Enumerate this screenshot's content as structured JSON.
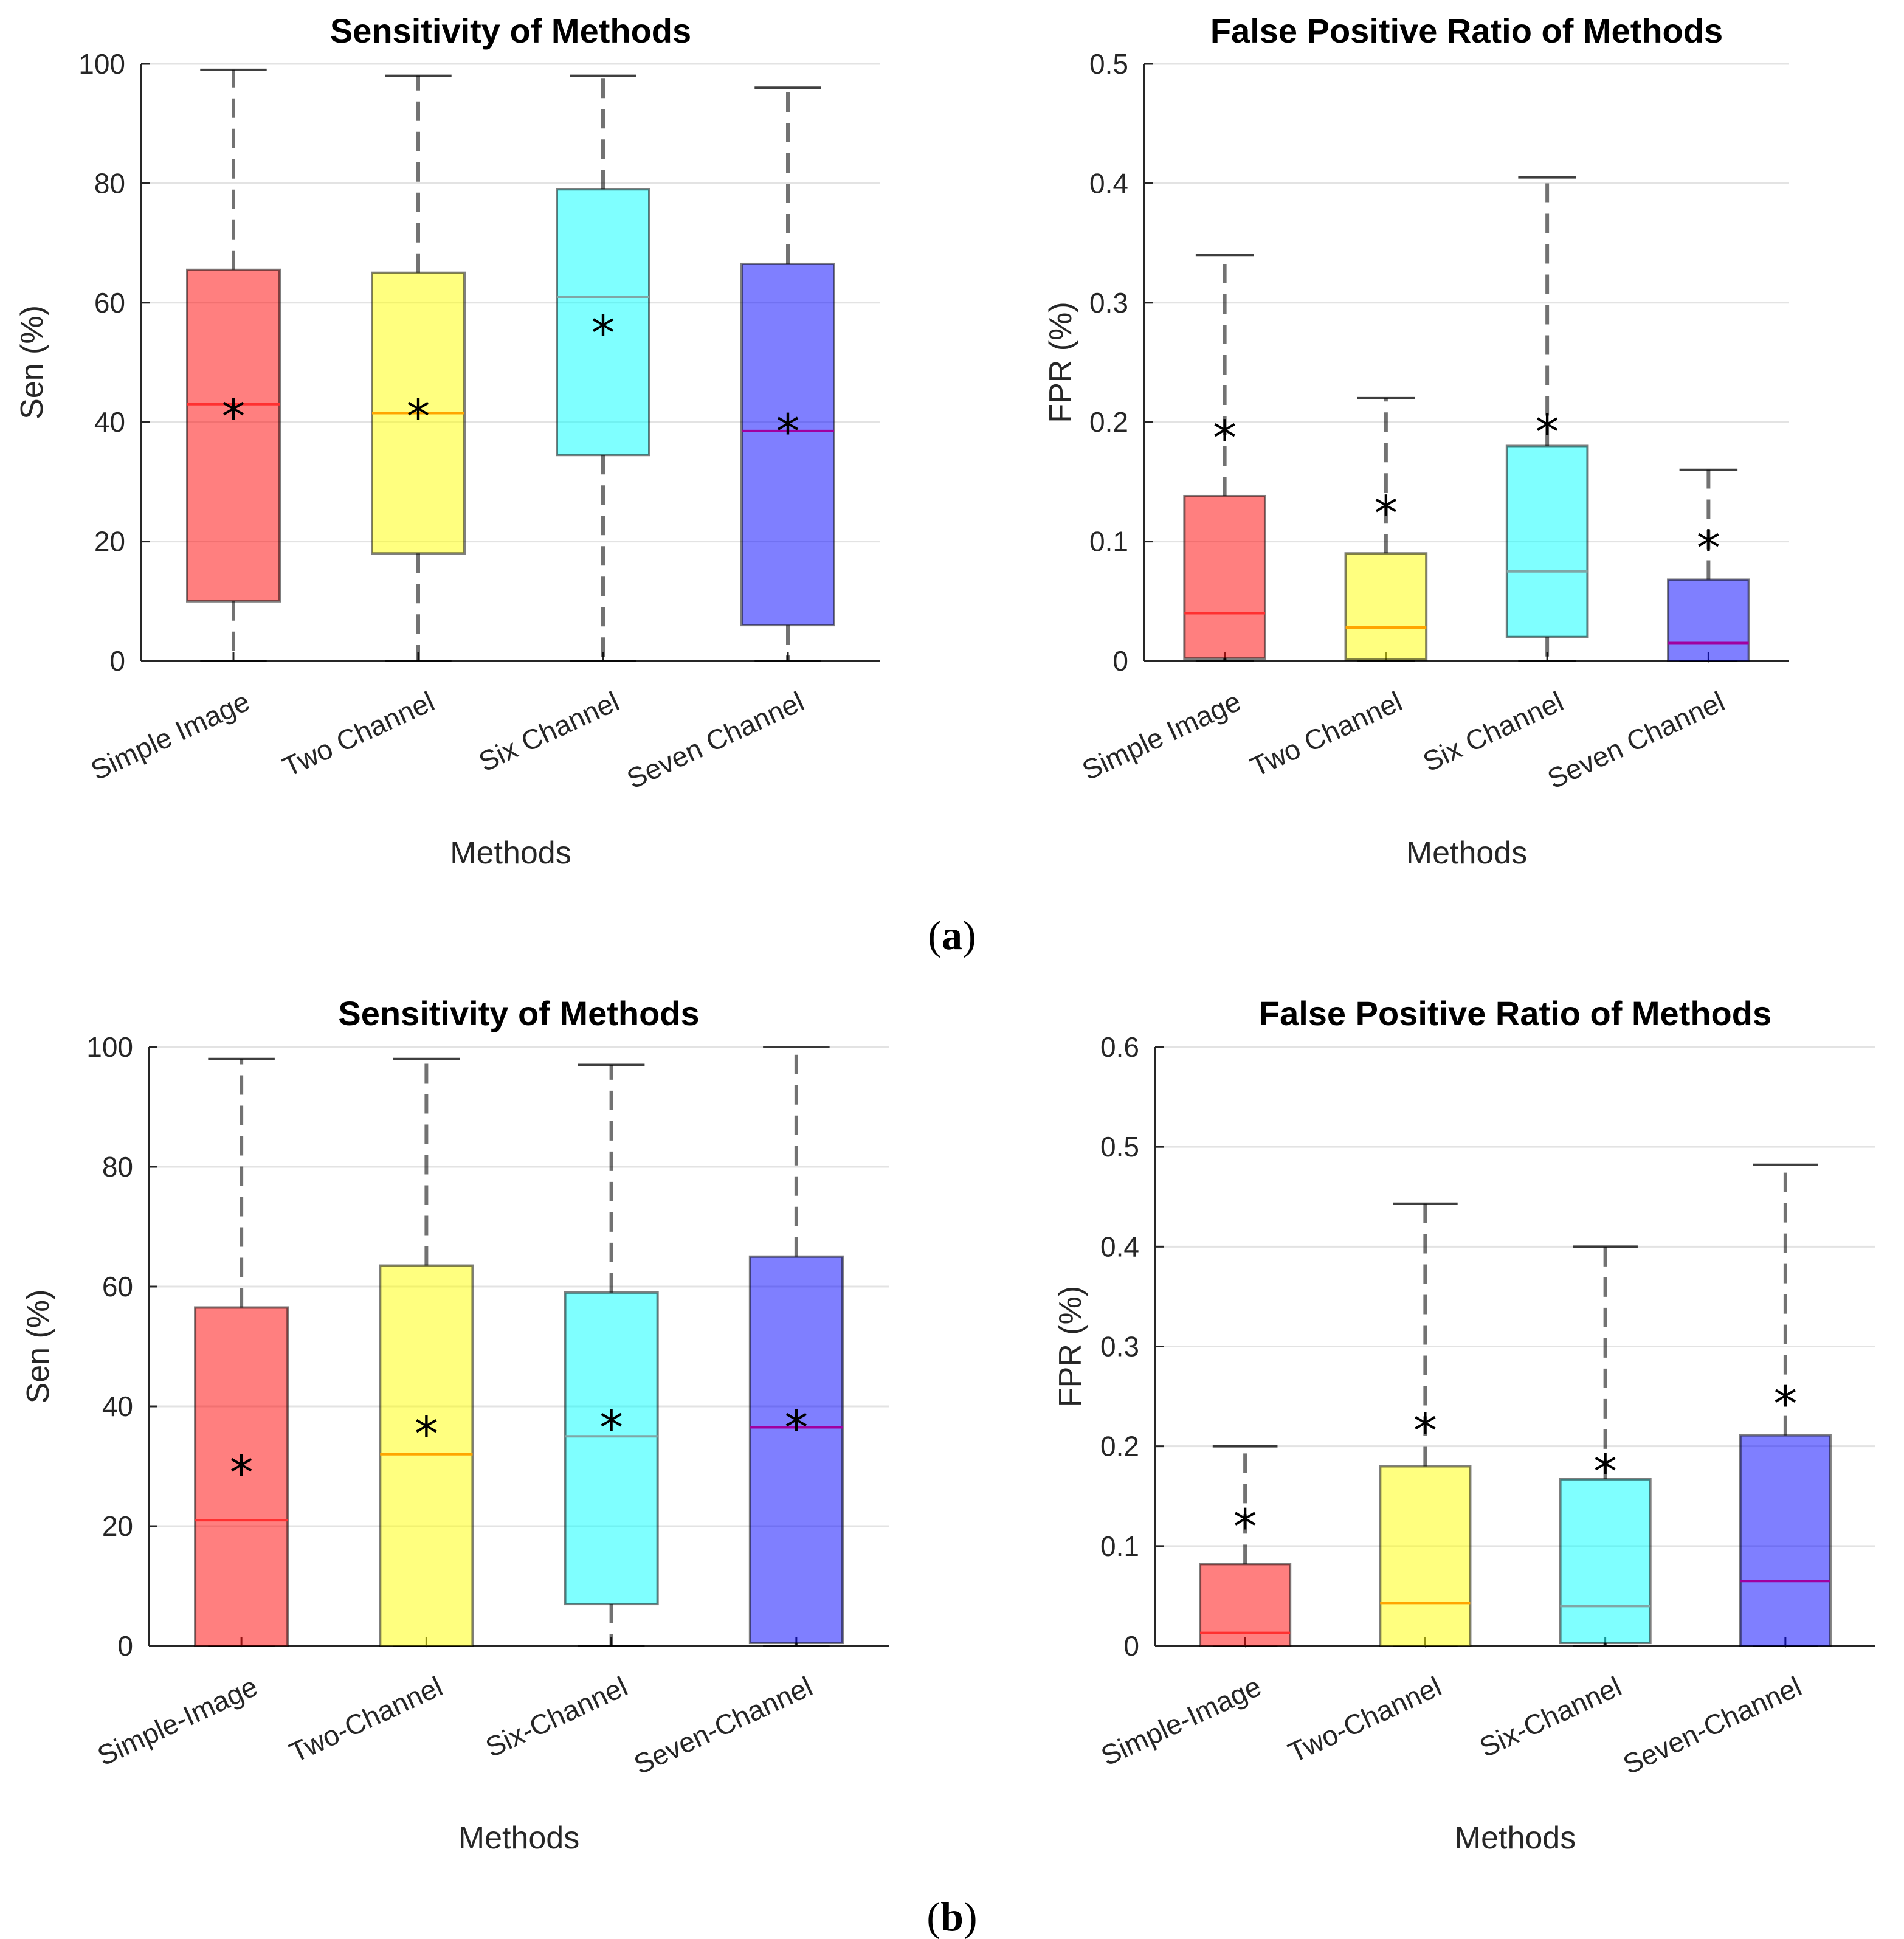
{
  "panels": [
    {
      "label": "a"
    },
    {
      "label": "b"
    }
  ],
  "caption_a": {
    "open": "(",
    "letter": "a",
    "close": ")"
  },
  "caption_b": {
    "open": "(",
    "letter": "b",
    "close": ")"
  },
  "colors": {
    "red": "#ff0000",
    "yellow": "#ffff00",
    "cyan": "#00ffff",
    "blue": "#0000ff",
    "red_median": "#ff3030",
    "yellow_median": "#ffa500",
    "cyan_median": "#7fa7a7",
    "blue_median": "#a000a0"
  },
  "chart_data": [
    {
      "id": "a-sen",
      "panel": "a",
      "type": "box",
      "title": "Sensitivity of Methods",
      "xlabel": "Methods",
      "ylabel": "Sen (%)",
      "ylim": [
        0,
        100
      ],
      "yticks": [
        0,
        20,
        40,
        60,
        80,
        100
      ],
      "ytick_labels": [
        "0",
        "20",
        "40",
        "60",
        "80",
        "100"
      ],
      "grid": true,
      "categories": [
        "Simple Image",
        "Two Channel",
        "Six Channel",
        "Seven Channel"
      ],
      "series": [
        {
          "name": "Simple Image",
          "color": "red",
          "min": 0,
          "q1": 10,
          "median": 43,
          "q3": 65.5,
          "max": 99,
          "mean": 41
        },
        {
          "name": "Two Channel",
          "color": "yellow",
          "min": 0,
          "q1": 18,
          "median": 41.5,
          "q3": 65,
          "max": 98,
          "mean": 41
        },
        {
          "name": "Six Channel",
          "color": "cyan",
          "min": 0,
          "q1": 34.5,
          "median": 61,
          "q3": 79,
          "max": 98,
          "mean": 55
        },
        {
          "name": "Seven Channel",
          "color": "blue",
          "min": 0,
          "q1": 6,
          "median": 38.5,
          "q3": 66.5,
          "max": 96,
          "mean": 38.5
        }
      ]
    },
    {
      "id": "a-fpr",
      "panel": "a",
      "type": "box",
      "title": "False Positive Ratio of Methods",
      "xlabel": "Methods",
      "ylabel": "FPR (%)",
      "ylim": [
        0,
        0.5
      ],
      "yticks": [
        0,
        0.1,
        0.2,
        0.3,
        0.4,
        0.5
      ],
      "ytick_labels": [
        "0",
        "0.1",
        "0.2",
        "0.3",
        "0.4",
        "0.5"
      ],
      "grid": true,
      "categories": [
        "Simple Image",
        "Two Channel",
        "Six Channel",
        "Seven Channel"
      ],
      "series": [
        {
          "name": "Simple Image",
          "color": "red",
          "min": 0,
          "q1": 0.002,
          "median": 0.04,
          "q3": 0.138,
          "max": 0.34,
          "mean": 0.187
        },
        {
          "name": "Two Channel",
          "color": "yellow",
          "min": 0,
          "q1": 0.001,
          "median": 0.028,
          "q3": 0.09,
          "max": 0.22,
          "mean": 0.124
        },
        {
          "name": "Six Channel",
          "color": "cyan",
          "min": 0,
          "q1": 0.02,
          "median": 0.075,
          "q3": 0.18,
          "max": 0.405,
          "mean": 0.192
        },
        {
          "name": "Seven Channel",
          "color": "blue",
          "min": 0,
          "q1": 0,
          "median": 0.015,
          "q3": 0.068,
          "max": 0.16,
          "mean": 0.095
        }
      ]
    },
    {
      "id": "b-sen",
      "panel": "b",
      "type": "box",
      "title": "Sensitivity of Methods",
      "xlabel": "Methods",
      "ylabel": "Sen (%)",
      "ylim": [
        0,
        100
      ],
      "yticks": [
        0,
        20,
        40,
        60,
        80,
        100
      ],
      "ytick_labels": [
        "0",
        "20",
        "40",
        "60",
        "80",
        "100"
      ],
      "grid": true,
      "categories": [
        "Simple-Image",
        "Two-Channel",
        "Six-Channel",
        "Seven-Channel"
      ],
      "series": [
        {
          "name": "Simple-Image",
          "color": "red",
          "min": 0,
          "q1": 0,
          "median": 21,
          "q3": 56.5,
          "max": 98,
          "mean": 29
        },
        {
          "name": "Two-Channel",
          "color": "yellow",
          "min": 0,
          "q1": 0,
          "median": 32,
          "q3": 63.5,
          "max": 98,
          "mean": 35.5
        },
        {
          "name": "Six-Channel",
          "color": "cyan",
          "min": 0,
          "q1": 7,
          "median": 35,
          "q3": 59,
          "max": 97,
          "mean": 36.5
        },
        {
          "name": "Seven-Channel",
          "color": "blue",
          "min": 0,
          "q1": 0.5,
          "median": 36.5,
          "q3": 65,
          "max": 100,
          "mean": 36.5
        }
      ]
    },
    {
      "id": "b-fpr",
      "panel": "b",
      "type": "box",
      "title": "False Positive Ratio of Methods",
      "xlabel": "Methods",
      "ylabel": "FPR (%)",
      "ylim": [
        0,
        0.6
      ],
      "yticks": [
        0,
        0.1,
        0.2,
        0.3,
        0.4,
        0.5,
        0.6
      ],
      "ytick_labels": [
        "0",
        "0.1",
        "0.2",
        "0.3",
        "0.4",
        "0.5",
        "0.6"
      ],
      "grid": true,
      "categories": [
        "Simple-Image",
        "Two-Channel",
        "Six-Channel",
        "Seven-Channel"
      ],
      "series": [
        {
          "name": "Simple-Image",
          "color": "red",
          "min": 0,
          "q1": 0,
          "median": 0.013,
          "q3": 0.082,
          "max": 0.2,
          "mean": 0.12
        },
        {
          "name": "Two-Channel",
          "color": "yellow",
          "min": 0,
          "q1": 0,
          "median": 0.043,
          "q3": 0.18,
          "max": 0.443,
          "mean": 0.216
        },
        {
          "name": "Six-Channel",
          "color": "cyan",
          "min": 0,
          "q1": 0.003,
          "median": 0.04,
          "q3": 0.167,
          "max": 0.4,
          "mean": 0.175
        },
        {
          "name": "Seven-Channel",
          "color": "blue",
          "min": 0,
          "q1": 0,
          "median": 0.065,
          "q3": 0.211,
          "max": 0.482,
          "mean": 0.243
        }
      ]
    }
  ]
}
